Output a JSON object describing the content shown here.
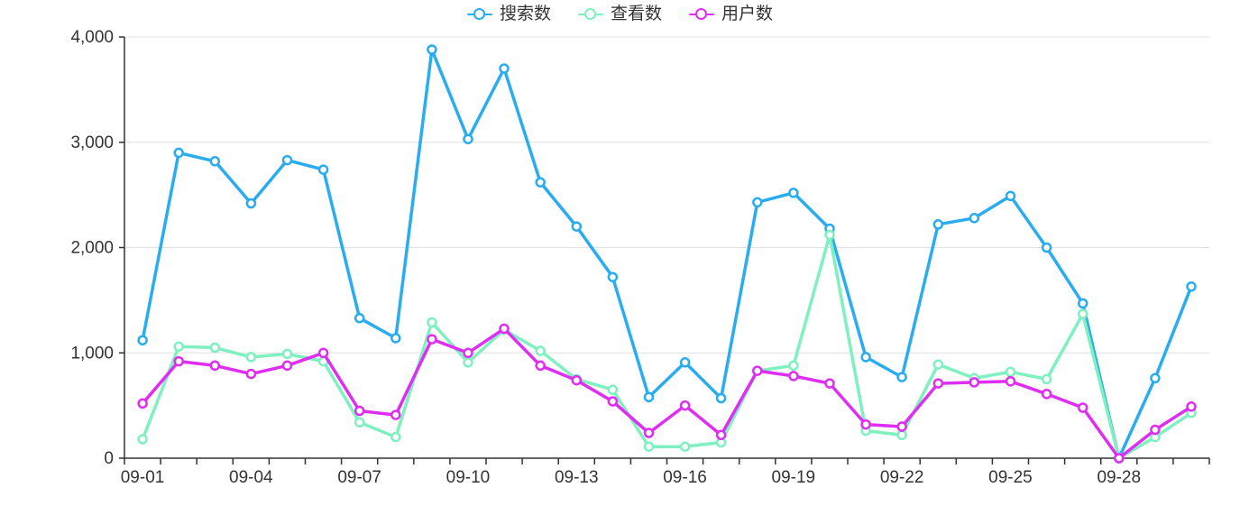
{
  "chart_data": {
    "type": "line",
    "x": [
      "09-01",
      "09-02",
      "09-03",
      "09-04",
      "09-05",
      "09-06",
      "09-07",
      "09-08",
      "09-09",
      "09-10",
      "09-11",
      "09-12",
      "09-13",
      "09-14",
      "09-15",
      "09-16",
      "09-17",
      "09-18",
      "09-19",
      "09-20",
      "09-21",
      "09-22",
      "09-23",
      "09-24",
      "09-25",
      "09-26",
      "09-27",
      "09-28",
      "09-29",
      "09-30"
    ],
    "x_label_every": 3,
    "x_tick_labels_shown": [
      "09-01",
      "09-04",
      "09-07",
      "09-10",
      "09-13",
      "09-16",
      "09-19",
      "09-22",
      "09-25",
      "09-28"
    ],
    "series": [
      {
        "key": "search-count",
        "name": "搜索数",
        "color": "#2aacf0",
        "values": [
          1120,
          2900,
          2820,
          2420,
          2830,
          2740,
          1330,
          1140,
          3880,
          3030,
          3700,
          2620,
          2200,
          1720,
          580,
          910,
          570,
          2430,
          2520,
          2180,
          960,
          770,
          2220,
          2280,
          2490,
          2000,
          1470,
          0,
          760,
          1630
        ]
      },
      {
        "key": "view-count",
        "name": "查看数",
        "color": "#7ff0c0",
        "values": [
          180,
          1060,
          1050,
          960,
          990,
          920,
          340,
          200,
          1290,
          910,
          1220,
          1020,
          750,
          650,
          110,
          110,
          150,
          830,
          880,
          2120,
          260,
          220,
          890,
          760,
          820,
          750,
          1370,
          0,
          200,
          430
        ]
      },
      {
        "key": "user-count",
        "name": "用户数",
        "color": "#e02df2",
        "values": [
          520,
          920,
          880,
          800,
          880,
          1000,
          450,
          410,
          1130,
          1000,
          1230,
          880,
          740,
          540,
          240,
          500,
          220,
          830,
          780,
          710,
          320,
          300,
          710,
          720,
          730,
          610,
          480,
          0,
          270,
          490
        ]
      }
    ],
    "ylim": [
      0,
      4000
    ],
    "y_ticks": [
      0,
      1000,
      2000,
      3000,
      4000
    ],
    "y_tick_labels": [
      "0",
      "1,000",
      "2,000",
      "3,000",
      "4,000"
    ],
    "legend_position": "top-center",
    "grid": "horizontal",
    "marker_style": "empty-circle"
  },
  "colors": {
    "axis": "#333333",
    "gridline": "#e0e0e6",
    "label_text": "#333333",
    "background": "#ffffff"
  }
}
